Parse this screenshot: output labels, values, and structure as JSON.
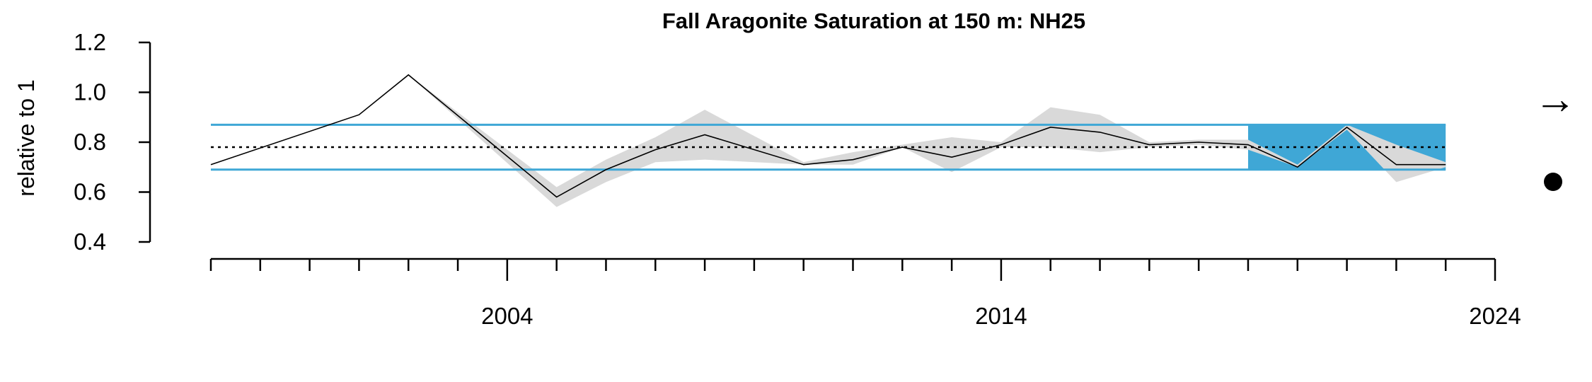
{
  "chart_data": {
    "type": "line",
    "title": "Fall Aragonite Saturation at 150 m: NH25",
    "ylabel": "relative to 1",
    "xlabel": "",
    "xlim": [
      1998,
      2024
    ],
    "ylim": [
      0.4,
      1.2
    ],
    "y_ticks": [
      0.4,
      0.6,
      0.8,
      1.0,
      1.2
    ],
    "y_tick_labels": [
      "0.4",
      "0.6",
      "0.8",
      "1.0",
      "1.2"
    ],
    "x_major_ticks": [
      2004,
      2014,
      2024
    ],
    "x_major_labels": [
      "2004",
      "2014",
      "2024"
    ],
    "x_minor_ticks": [
      1998,
      1999,
      2000,
      2001,
      2002,
      2003,
      2004,
      2005,
      2006,
      2007,
      2008,
      2009,
      2010,
      2011,
      2012,
      2013,
      2014,
      2015,
      2016,
      2017,
      2018,
      2019,
      2020,
      2021,
      2022,
      2023,
      2024
    ],
    "series": [
      {
        "x": [
          1998,
          2001,
          2002,
          2005,
          2006,
          2007,
          2008,
          2010,
          2011,
          2012,
          2013,
          2014,
          2015,
          2016,
          2017,
          2018,
          2019,
          2020,
          2021,
          2022,
          2023
        ],
        "y": [
          0.71,
          0.91,
          1.07,
          0.58,
          0.69,
          0.77,
          0.83,
          0.71,
          0.73,
          0.78,
          0.74,
          0.79,
          0.86,
          0.84,
          0.79,
          0.8,
          0.79,
          0.7,
          0.86,
          0.71,
          0.71
        ],
        "ci_lower": [
          0.71,
          0.91,
          1.07,
          0.54,
          0.64,
          0.72,
          0.73,
          0.71,
          0.71,
          0.78,
          0.68,
          0.78,
          0.78,
          0.76,
          0.78,
          0.79,
          0.77,
          0.7,
          0.85,
          0.64,
          0.7
        ],
        "ci_upper": [
          0.71,
          0.91,
          1.07,
          0.62,
          0.73,
          0.82,
          0.93,
          0.72,
          0.76,
          0.79,
          0.82,
          0.8,
          0.94,
          0.91,
          0.8,
          0.81,
          0.81,
          0.71,
          0.87,
          0.79,
          0.72
        ],
        "color": "#000000",
        "ci_color": "#d9d9d9"
      }
    ],
    "mean": 0.78,
    "mean_plus_sd": 0.87,
    "mean_minus_sd": 0.69,
    "recent_window": [
      2019,
      2023
    ],
    "colors": {
      "band": "#3fa7d6",
      "recent_fill": "#3fa7d6",
      "mean_line": "#000000"
    },
    "trend_symbol": "→",
    "trend_icon": "right-arrow-icon",
    "mean_status_icon": "filled-circle-icon"
  }
}
